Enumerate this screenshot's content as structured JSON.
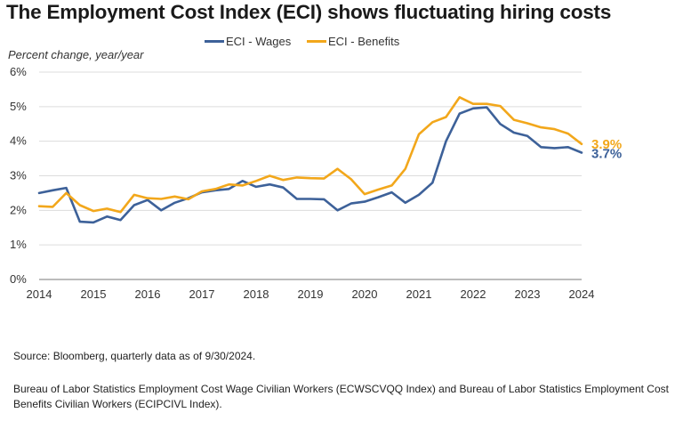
{
  "title": "The Employment Cost Index (ECI) shows fluctuating hiring costs",
  "source_text": "Source: Bloomberg, quarterly data as of 9/30/2024.",
  "note_text": "Bureau of Labor Statistics Employment Cost Wage Civilian Workers (ECWSCVQQ Index) and Bureau of Labor Statistics Employment Cost Benefits Civilian Workers (ECIPCIVL Index).",
  "chart_data": {
    "type": "line",
    "title": "The Employment Cost Index (ECI) shows fluctuating hiring costs",
    "ylabel": "Percent change, year/year",
    "xlabel": "",
    "xlim": [
      2014,
      2024
    ],
    "ylim": [
      0,
      6
    ],
    "x_ticks": [
      "2014",
      "2015",
      "2016",
      "2017",
      "2018",
      "2019",
      "2020",
      "2021",
      "2022",
      "2023",
      "2024"
    ],
    "y_ticks": [
      "0%",
      "1%",
      "2%",
      "3%",
      "4%",
      "5%",
      "6%"
    ],
    "grid": "horizontal",
    "legend_position": "top-center",
    "x": [
      2014.0,
      2014.25,
      2014.5,
      2014.75,
      2015.0,
      2015.25,
      2015.5,
      2015.75,
      2016.0,
      2016.25,
      2016.5,
      2016.75,
      2017.0,
      2017.25,
      2017.5,
      2017.75,
      2018.0,
      2018.25,
      2018.5,
      2018.75,
      2019.0,
      2019.25,
      2019.5,
      2019.75,
      2020.0,
      2020.25,
      2020.5,
      2020.75,
      2021.0,
      2021.25,
      2021.5,
      2021.75,
      2022.0,
      2022.25,
      2022.5,
      2022.75,
      2023.0,
      2023.25,
      2023.5,
      2023.75,
      2024.0
    ],
    "series": [
      {
        "name": "ECI - Wages",
        "color": "#3d6199",
        "end_label": "3.7%",
        "values": [
          2.5,
          2.58,
          2.65,
          1.67,
          1.65,
          1.82,
          1.72,
          2.15,
          2.3,
          2.0,
          2.22,
          2.35,
          2.52,
          2.58,
          2.62,
          2.85,
          2.68,
          2.75,
          2.66,
          2.33,
          2.33,
          2.32,
          2.0,
          2.2,
          2.25,
          2.38,
          2.52,
          2.22,
          2.45,
          2.8,
          4.0,
          4.8,
          4.95,
          4.98,
          4.5,
          4.25,
          4.15,
          3.83,
          3.8,
          3.83,
          3.67
        ]
      },
      {
        "name": "ECI - Benefits",
        "color": "#f2a71b",
        "end_label": "3.9%",
        "values": [
          2.12,
          2.1,
          2.5,
          2.15,
          1.98,
          2.05,
          1.95,
          2.45,
          2.35,
          2.33,
          2.4,
          2.32,
          2.55,
          2.62,
          2.75,
          2.72,
          2.85,
          3.0,
          2.88,
          2.95,
          2.93,
          2.92,
          3.2,
          2.9,
          2.47,
          2.6,
          2.72,
          3.2,
          4.2,
          4.55,
          4.7,
          5.27,
          5.08,
          5.08,
          5.02,
          4.62,
          4.52,
          4.4,
          4.35,
          4.22,
          3.92
        ]
      }
    ]
  }
}
